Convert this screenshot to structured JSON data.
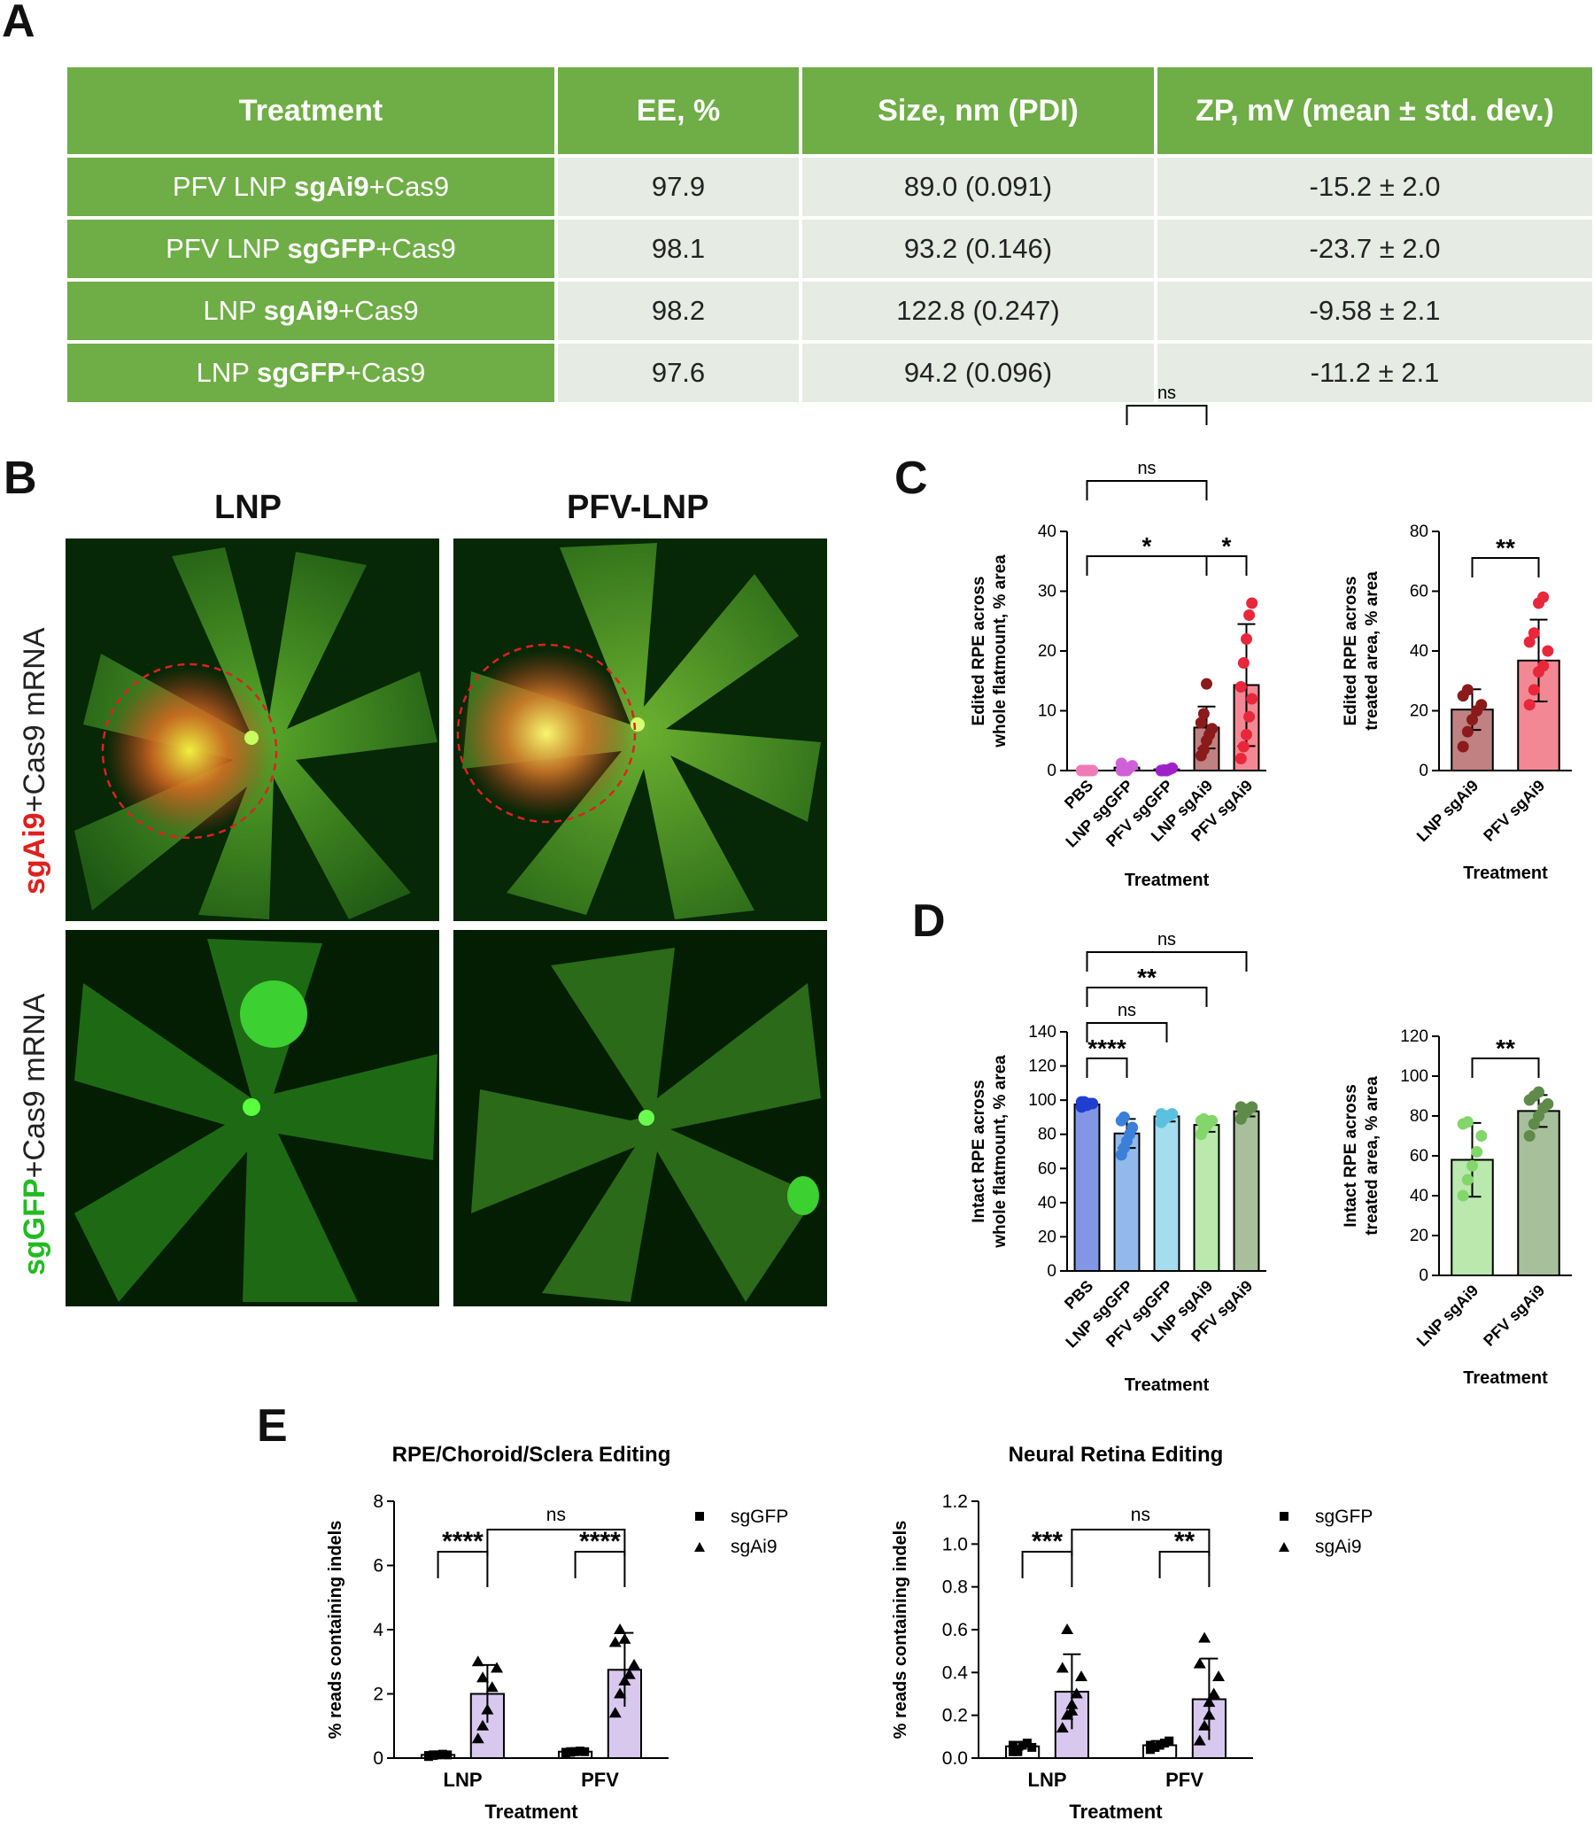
{
  "panels": {
    "A": "A",
    "B": "B",
    "C": "C",
    "D": "D",
    "E": "E"
  },
  "table": {
    "headers": [
      "Treatment",
      "EE, %",
      "Size, nm (PDI)",
      "ZP, mV (mean ± std. dev.)"
    ],
    "rows": [
      {
        "pre": "PFV LNP ",
        "bold": "sgAi9",
        "post": "+Cas9",
        "ee": "97.9",
        "size": "89.0 (0.091)",
        "zp": "-15.2 ± 2.0"
      },
      {
        "pre": "PFV LNP ",
        "bold": "sgGFP",
        "post": "+Cas9",
        "ee": "98.1",
        "size": "93.2 (0.146)",
        "zp": "-23.7 ± 2.0"
      },
      {
        "pre": "LNP ",
        "bold": "sgAi9",
        "post": "+Cas9",
        "ee": "98.2",
        "size": "122.8 (0.247)",
        "zp": "-9.58 ± 2.1"
      },
      {
        "pre": "LNP ",
        "bold": "sgGFP",
        "post": "+Cas9",
        "ee": "97.6",
        "size": "94.2 (0.096)",
        "zp": "-11.2 ± 2.1"
      }
    ]
  },
  "images": {
    "col_labels": [
      "LNP",
      "PFV-LNP"
    ],
    "row_labels": [
      {
        "colored": "sgAi9",
        "rest": "+Cas9 mRNA",
        "color": "#e02020"
      },
      {
        "colored": "sgGFP",
        "rest": "+Cas9 mRNA",
        "color": "#22bb22"
      }
    ]
  },
  "chart_data": [
    {
      "id": "C1",
      "type": "bar",
      "ylabel": [
        "Edited RPE across",
        "whole flatmount, % area"
      ],
      "xlabel": "Treatment",
      "categories": [
        "PBS",
        "LNP sgGFP",
        "PFV sgGFP",
        "LNP sgAi9",
        "PFV sgAi9"
      ],
      "values": [
        0,
        0.5,
        0.2,
        7.2,
        14.3
      ],
      "err": [
        0.1,
        0.6,
        0.2,
        3.5,
        10.2
      ],
      "colors": [
        "#f07ab8",
        "#d060d8",
        "#a020c8",
        "#8b1a1a",
        "#e8273a"
      ],
      "points": [
        [
          0,
          0,
          0,
          0,
          0,
          0,
          0,
          0
        ],
        [
          0,
          0,
          0.2,
          0.5,
          0.8,
          1.2,
          0.3,
          0
        ],
        [
          0,
          0,
          0,
          0.2,
          0.4,
          0,
          0.1,
          0
        ],
        [
          2.5,
          3.5,
          5,
          6,
          7,
          8,
          9.5,
          14.5
        ],
        [
          2,
          4,
          6,
          9,
          12,
          14,
          18,
          22,
          26,
          28
        ]
      ],
      "ylim": [
        0,
        40
      ],
      "yticks": [
        0,
        10,
        20,
        30,
        40
      ],
      "brackets": [
        {
          "a": 0,
          "b": 3,
          "level": 0,
          "label": "*"
        },
        {
          "a": 3,
          "b": 4,
          "level": 0,
          "label": "*"
        },
        {
          "a": 0,
          "b": 3,
          "level": 1,
          "label": "ns"
        },
        {
          "a": 1,
          "b": 3,
          "level": 2,
          "label": "ns"
        }
      ]
    },
    {
      "id": "C2",
      "type": "bar",
      "ylabel": [
        "Edited RPE across",
        "treated area, % area"
      ],
      "xlabel": "Treatment",
      "categories": [
        "LNP sgAi9",
        "PFV sgAi9"
      ],
      "values": [
        20.4,
        36.8
      ],
      "err": [
        6.8,
        13.7
      ],
      "colors": [
        "#8b1a1a",
        "#e8273a"
      ],
      "points": [
        [
          8,
          13,
          17,
          20,
          22,
          25,
          27
        ],
        [
          22,
          27,
          33,
          35,
          40,
          43,
          46,
          56,
          58
        ]
      ],
      "ylim": [
        0,
        80
      ],
      "yticks": [
        0,
        20,
        40,
        60,
        80
      ],
      "brackets": [
        {
          "a": 0,
          "b": 1,
          "level": 0,
          "label": "**"
        }
      ]
    },
    {
      "id": "D1",
      "type": "bar",
      "ylabel": [
        "Intact RPE across",
        "whole flatmount, % area"
      ],
      "xlabel": "Treatment",
      "categories": [
        "PBS",
        "LNP sgGFP",
        "PFV sgGFP",
        "LNP sgAi9",
        "PFV sgAi9"
      ],
      "values": [
        97.5,
        80.5,
        90.5,
        85.5,
        93.5
      ],
      "err": [
        1.2,
        8.5,
        3.0,
        4.0,
        3.0
      ],
      "colors": [
        "#1e3fcf",
        "#3a7fd8",
        "#5cc0e0",
        "#82d66a",
        "#5f8a4a"
      ],
      "points": [
        [
          96,
          97,
          97,
          98,
          98,
          99,
          99,
          98
        ],
        [
          68,
          72,
          76,
          80,
          84,
          88,
          90
        ],
        [
          87,
          89,
          90,
          91,
          92,
          92,
          91
        ],
        [
          80,
          83,
          85,
          87,
          88,
          88,
          89,
          86
        ],
        [
          89,
          92,
          93,
          95,
          96,
          96,
          94
        ]
      ],
      "ylim": [
        0,
        140
      ],
      "yticks": [
        0,
        20,
        40,
        60,
        80,
        100,
        120,
        140
      ],
      "brackets": [
        {
          "a": 0,
          "b": 1,
          "level": 0,
          "label": "****"
        },
        {
          "a": 0,
          "b": 2,
          "level": 1,
          "label": "ns"
        },
        {
          "a": 0,
          "b": 3,
          "level": 2,
          "label": "**"
        },
        {
          "a": 0,
          "b": 4,
          "level": 3,
          "label": "ns"
        }
      ]
    },
    {
      "id": "D2",
      "type": "bar",
      "ylabel": [
        "Intact RPE across",
        "treated area, % area"
      ],
      "xlabel": "Treatment",
      "categories": [
        "LNP sgAi9",
        "PFV sgAi9"
      ],
      "values": [
        58,
        82.5
      ],
      "err": [
        18.5,
        8
      ],
      "colors": [
        "#82d66a",
        "#5f8a4a"
      ],
      "points": [
        [
          40,
          48,
          55,
          62,
          70,
          76,
          77
        ],
        [
          70,
          76,
          80,
          84,
          86,
          88,
          90,
          92
        ]
      ],
      "ylim": [
        0,
        120
      ],
      "yticks": [
        0,
        20,
        40,
        60,
        80,
        100,
        120
      ],
      "brackets": [
        {
          "a": 0,
          "b": 1,
          "level": 0,
          "label": "**"
        }
      ]
    },
    {
      "id": "E1",
      "type": "grouped-bar",
      "title": "RPE/Choroid/Sclera Editing",
      "ylabel": [
        "% reads containing indels"
      ],
      "xlabel": "Treatment",
      "categories": [
        "LNP",
        "PFV"
      ],
      "series": [
        {
          "name": "sgGFP",
          "values": [
            0.1,
            0.2
          ],
          "err": [
            0.02,
            0.03
          ],
          "points": [
            [
              0.05,
              0.08,
              0.1,
              0.12,
              0.1,
              0.08,
              0.1
            ],
            [
              0.15,
              0.18,
              0.2,
              0.22,
              0.2,
              0.18,
              0.2
            ]
          ]
        },
        {
          "name": "sgAi9",
          "values": [
            2.0,
            2.75
          ],
          "err": [
            0.9,
            1.15
          ],
          "points": [
            [
              0.6,
              1.0,
              1.5,
              2.2,
              2.8,
              3.0,
              2.5
            ],
            [
              1.4,
              2.0,
              2.4,
              2.6,
              2.9,
              3.6,
              4.0,
              3.7
            ]
          ]
        }
      ],
      "ylim": [
        0,
        8
      ],
      "yticks": [
        0,
        2,
        4,
        6,
        8
      ],
      "sig": [
        "****",
        "****"
      ],
      "top": "ns"
    },
    {
      "id": "E2",
      "type": "grouped-bar",
      "title": "Neural Retina Editing",
      "ylabel": [
        "% reads containing indels"
      ],
      "xlabel": "Treatment",
      "categories": [
        "LNP",
        "PFV"
      ],
      "series": [
        {
          "name": "sgGFP",
          "values": [
            0.055,
            0.06
          ],
          "err": [
            0.02,
            0.02
          ],
          "points": [
            [
              0.03,
              0.04,
              0.06,
              0.07,
              0.05,
              0.06,
              0.03
            ],
            [
              0.04,
              0.05,
              0.06,
              0.07,
              0.08,
              0.06,
              0.05,
              0.06
            ]
          ]
        },
        {
          "name": "sgAi9",
          "values": [
            0.31,
            0.275
          ],
          "err": [
            0.175,
            0.19
          ],
          "points": [
            [
              0.14,
              0.2,
              0.25,
              0.3,
              0.38,
              0.42,
              0.6,
              0.22
            ],
            [
              0.08,
              0.15,
              0.2,
              0.3,
              0.38,
              0.44,
              0.56,
              0.26
            ]
          ]
        }
      ],
      "ylim": [
        0,
        1.2
      ],
      "yticks": [
        "0.0",
        "0.2",
        "0.4",
        "0.6",
        "0.8",
        "1.0",
        "1.2"
      ],
      "sig": [
        "***",
        "**"
      ],
      "top": "ns"
    }
  ]
}
